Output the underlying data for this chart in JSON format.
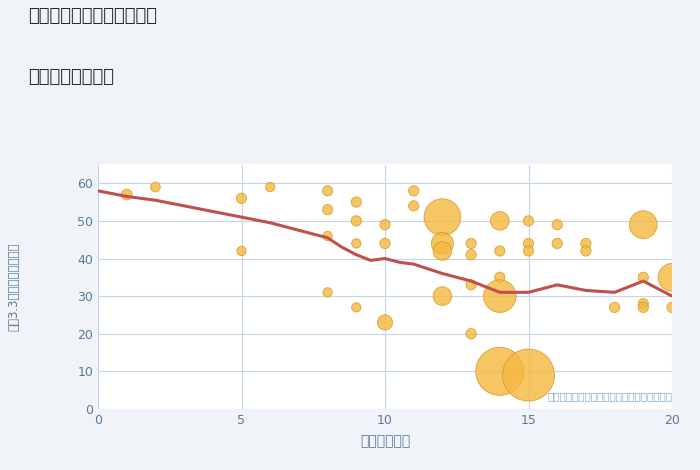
{
  "title_line1": "神奈川県伊勢原市東大竹の",
  "title_line2": "駅距離別土地価格",
  "xlabel": "駅距離（分）",
  "ylabel": "坪（3.3㎡）単価（万円）",
  "annotation": "円の大きさは、取引のあった物件面積を示す",
  "bg_color": "#f0f4f8",
  "plot_bg_color": "#ffffff",
  "grid_color": "#c5d5e5",
  "title_color": "#2a2a2a",
  "label_color": "#5a7a9a",
  "annotation_color": "#7aaacc",
  "line_color": "#c0504d",
  "bubble_color": "#f5b942",
  "bubble_edge_color": "#d49520",
  "xlim": [
    0,
    20
  ],
  "ylim": [
    0,
    65
  ],
  "xticks": [
    0,
    5,
    10,
    15,
    20
  ],
  "yticks": [
    0,
    10,
    20,
    30,
    40,
    50,
    60
  ],
  "trend_x": [
    0,
    1,
    2,
    3,
    4,
    5,
    6,
    7,
    8,
    8.5,
    9,
    9.5,
    10,
    10.5,
    11,
    12,
    13,
    14,
    15,
    16,
    17,
    18,
    19,
    20
  ],
  "trend_y": [
    58,
    56.5,
    55.5,
    54.0,
    52.5,
    51.0,
    49.5,
    47.5,
    45.5,
    43.0,
    41.0,
    39.5,
    40.0,
    39.0,
    38.5,
    36.0,
    34.0,
    31.0,
    31.0,
    33.0,
    31.5,
    31.0,
    34.0,
    30.0
  ],
  "scatter_x": [
    1,
    2,
    5,
    5,
    6,
    8,
    8,
    8,
    8,
    9,
    9,
    9,
    9,
    10,
    10,
    10,
    11,
    11,
    12,
    12,
    12,
    12,
    13,
    13,
    13,
    13,
    14,
    14,
    14,
    14,
    14,
    15,
    15,
    15,
    15,
    16,
    16,
    17,
    17,
    18,
    19,
    19,
    19,
    19,
    20,
    20
  ],
  "scatter_y": [
    57,
    59,
    56,
    42,
    59,
    58,
    53,
    46,
    31,
    55,
    50,
    44,
    27,
    49,
    44,
    23,
    58,
    54,
    51,
    44,
    42,
    30,
    44,
    41,
    33,
    20,
    50,
    42,
    35,
    30,
    10,
    50,
    44,
    42,
    9,
    49,
    44,
    44,
    42,
    27,
    49,
    35,
    28,
    27,
    35,
    27
  ],
  "scatter_size": [
    60,
    50,
    55,
    45,
    45,
    55,
    55,
    45,
    45,
    55,
    55,
    45,
    45,
    55,
    55,
    120,
    55,
    55,
    700,
    250,
    180,
    180,
    55,
    55,
    55,
    55,
    180,
    55,
    55,
    550,
    1200,
    55,
    55,
    55,
    1400,
    55,
    55,
    55,
    55,
    55,
    400,
    55,
    55,
    55,
    400,
    55
  ]
}
